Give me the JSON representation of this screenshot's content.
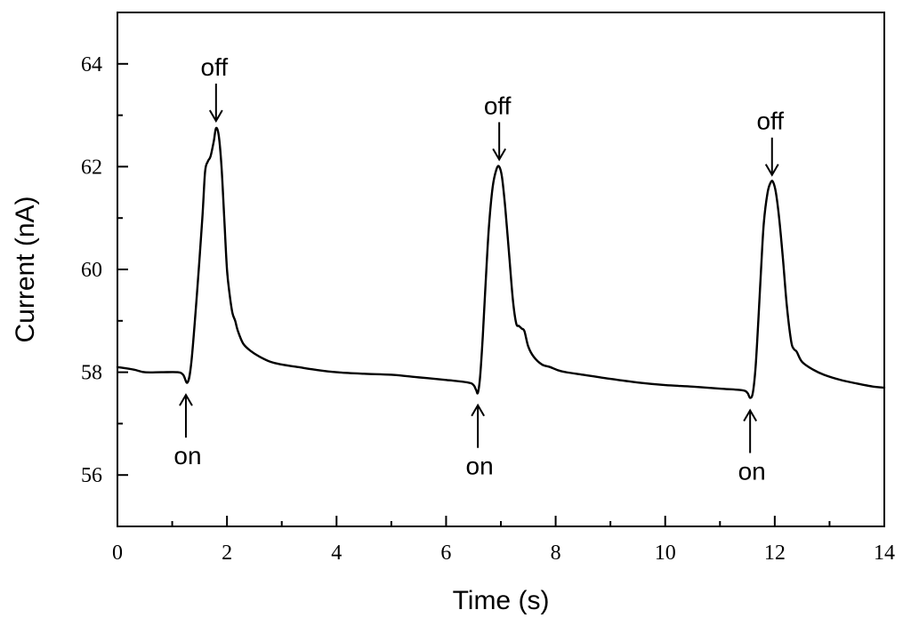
{
  "chart_data": {
    "type": "line",
    "xlabel": "Time (s)",
    "ylabel": "Current (nA)",
    "xlim": [
      0,
      14
    ],
    "ylim": [
      55,
      65
    ],
    "x_ticks": [
      0,
      2,
      4,
      6,
      8,
      10,
      12,
      14
    ],
    "x_tick_labels": [
      "0",
      "2",
      "4",
      "6",
      "8",
      "10",
      "12",
      "14"
    ],
    "y_ticks": [
      56,
      58,
      60,
      62,
      64
    ],
    "y_tick_labels": [
      "56",
      "58",
      "60",
      "62",
      "64"
    ],
    "grid": false,
    "series": [
      {
        "color": "#000000",
        "x": [
          0.0,
          0.3,
          0.5,
          0.8,
          1.1,
          1.2,
          1.28,
          1.35,
          1.45,
          1.55,
          1.6,
          1.65,
          1.7,
          1.76,
          1.8,
          1.85,
          1.9,
          1.95,
          2.0,
          2.05,
          2.1,
          2.15,
          2.2,
          2.3,
          2.45,
          2.6,
          2.8,
          3.0,
          3.3,
          3.6,
          4.0,
          4.5,
          5.0,
          5.5,
          6.0,
          6.4,
          6.5,
          6.55,
          6.58,
          6.62,
          6.67,
          6.72,
          6.78,
          6.85,
          6.92,
          6.97,
          7.02,
          7.08,
          7.15,
          7.22,
          7.28,
          7.33,
          7.38,
          7.43,
          7.5,
          7.6,
          7.75,
          7.9,
          8.1,
          8.5,
          9.0,
          9.5,
          10.0,
          10.5,
          11.0,
          11.4,
          11.5,
          11.55,
          11.6,
          11.65,
          11.7,
          11.75,
          11.8,
          11.87,
          11.93,
          11.97,
          12.02,
          12.08,
          12.15,
          12.22,
          12.3,
          12.35,
          12.4,
          12.5,
          12.7,
          12.9,
          13.2,
          13.5,
          13.8,
          14.0
        ],
        "y": [
          58.1,
          58.05,
          58.0,
          58.0,
          58.0,
          57.95,
          57.8,
          58.2,
          59.5,
          61.0,
          61.9,
          62.1,
          62.2,
          62.5,
          62.75,
          62.6,
          62.0,
          61.0,
          60.0,
          59.5,
          59.15,
          59.0,
          58.8,
          58.55,
          58.4,
          58.3,
          58.2,
          58.15,
          58.1,
          58.05,
          58.0,
          57.97,
          57.95,
          57.9,
          57.85,
          57.8,
          57.75,
          57.65,
          57.6,
          57.9,
          58.7,
          59.7,
          60.8,
          61.6,
          61.95,
          62.0,
          61.8,
          61.2,
          60.3,
          59.4,
          58.95,
          58.9,
          58.85,
          58.8,
          58.5,
          58.3,
          58.15,
          58.1,
          58.02,
          57.95,
          57.87,
          57.8,
          57.75,
          57.72,
          57.68,
          57.65,
          57.6,
          57.5,
          57.6,
          58.1,
          59.0,
          60.0,
          60.9,
          61.5,
          61.7,
          61.7,
          61.5,
          61.0,
          60.2,
          59.3,
          58.6,
          58.45,
          58.4,
          58.2,
          58.05,
          57.95,
          57.85,
          57.78,
          57.72,
          57.7
        ]
      }
    ],
    "annotations": [
      {
        "text": "off",
        "x": 1.8,
        "y": 62.75,
        "direction": "down"
      },
      {
        "text": "on",
        "x": 1.25,
        "y": 57.8,
        "direction": "up"
      },
      {
        "text": "off",
        "x": 6.97,
        "y": 62.0,
        "direction": "down"
      },
      {
        "text": "on",
        "x": 6.58,
        "y": 57.6,
        "direction": "up"
      },
      {
        "text": "off",
        "x": 11.95,
        "y": 61.7,
        "direction": "down"
      },
      {
        "text": "on",
        "x": 11.55,
        "y": 57.5,
        "direction": "up"
      }
    ]
  }
}
